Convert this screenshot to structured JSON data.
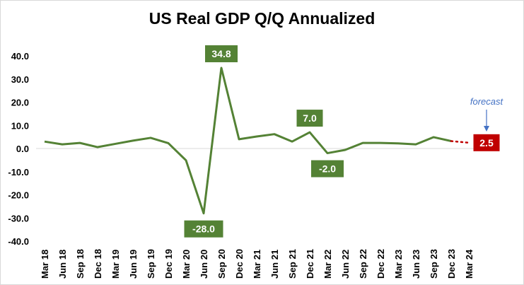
{
  "chart_data": {
    "type": "line",
    "title": "US Real GDP Q/Q Annualized",
    "xlabel": "",
    "ylabel": "",
    "ylim": [
      -40,
      40
    ],
    "yticks": [
      "40.0",
      "30.0",
      "20.0",
      "10.0",
      "0.0",
      "-10.0",
      "-20.0",
      "-30.0",
      "-40.0"
    ],
    "grid": "zero line only",
    "categories": [
      "Mar 18",
      "Jun 18",
      "Sep 18",
      "Dec 18",
      "Mar 19",
      "Jun 19",
      "Sep 19",
      "Dec 19",
      "Mar 20",
      "Jun 20",
      "Sep 20",
      "Dec 20",
      "Mar 21",
      "Jun 21",
      "Sep 21",
      "Dec 21",
      "Mar 22",
      "Jun 22",
      "Sep 22",
      "Dec 22",
      "Mar 23",
      "Jun 23",
      "Sep 23",
      "Dec 23",
      "Mar 24"
    ],
    "series": [
      {
        "values": [
          3.0,
          1.8,
          2.4,
          0.6,
          2.0,
          3.4,
          4.6,
          2.3,
          -5.1,
          -28.0,
          34.8,
          4.0,
          5.2,
          6.2,
          3.0,
          7.0,
          -2.0,
          -0.6,
          2.4,
          2.4,
          2.2,
          1.8,
          4.9,
          3.2,
          null
        ],
        "color": "#548235"
      },
      {
        "values": [
          null,
          null,
          null,
          null,
          null,
          null,
          null,
          null,
          null,
          null,
          null,
          null,
          null,
          null,
          null,
          null,
          null,
          null,
          null,
          null,
          null,
          null,
          null,
          3.2,
          2.5
        ],
        "color": "#c00000",
        "style": "dotted"
      }
    ],
    "data_labels": [
      {
        "category": "Jun 20",
        "text": "-28.0",
        "position": "below",
        "color": "#548235"
      },
      {
        "category": "Sep 20",
        "text": "34.8",
        "position": "above",
        "color": "#548235"
      },
      {
        "category": "Dec 21",
        "text": "7.0",
        "position": "above",
        "color": "#548235"
      },
      {
        "category": "Mar 22",
        "text": "-2.0",
        "position": "below",
        "color": "#548235"
      },
      {
        "category": "Mar 24",
        "text": "2.5",
        "position": "right",
        "color": "#c00000"
      }
    ],
    "annotations": [
      {
        "text": "forecast",
        "category": "Mar 24",
        "color": "#4472c4"
      }
    ]
  }
}
